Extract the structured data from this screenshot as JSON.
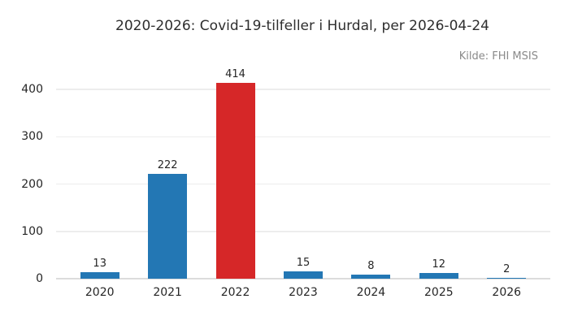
{
  "header": {
    "title": "2020-2026: Covid-19-tilfeller i Hurdal, per 2026-04-24",
    "source": "Kilde: FHI MSIS"
  },
  "colors": {
    "bar_blue": "#2377b4",
    "bar_red_highlight": "#d62728",
    "gridline": "#ededed",
    "baseline": "#dcdcdc",
    "title_text": "#2e2e2e",
    "tick_text": "#262626",
    "source_text": "#8a8a8a",
    "background": "#ffffff"
  },
  "chart_data": {
    "type": "bar",
    "title": "2020-2026: Covid-19-tilfeller i Hurdal, per 2026-04-24",
    "annotation": "Kilde: FHI MSIS",
    "categories": [
      "2020",
      "2021",
      "2022",
      "2023",
      "2024",
      "2025",
      "2026"
    ],
    "values": [
      13,
      222,
      414,
      15,
      8,
      12,
      2
    ],
    "bar_colors": [
      "#2377b4",
      "#2377b4",
      "#d62728",
      "#2377b4",
      "#2377b4",
      "#2377b4",
      "#2377b4"
    ],
    "value_labels_shown": true,
    "xlabel": "",
    "ylabel": "",
    "yticks": [
      0,
      100,
      200,
      300,
      400
    ],
    "ylim": [
      0,
      438
    ],
    "grid": "horizontal",
    "legend_position": "none"
  }
}
